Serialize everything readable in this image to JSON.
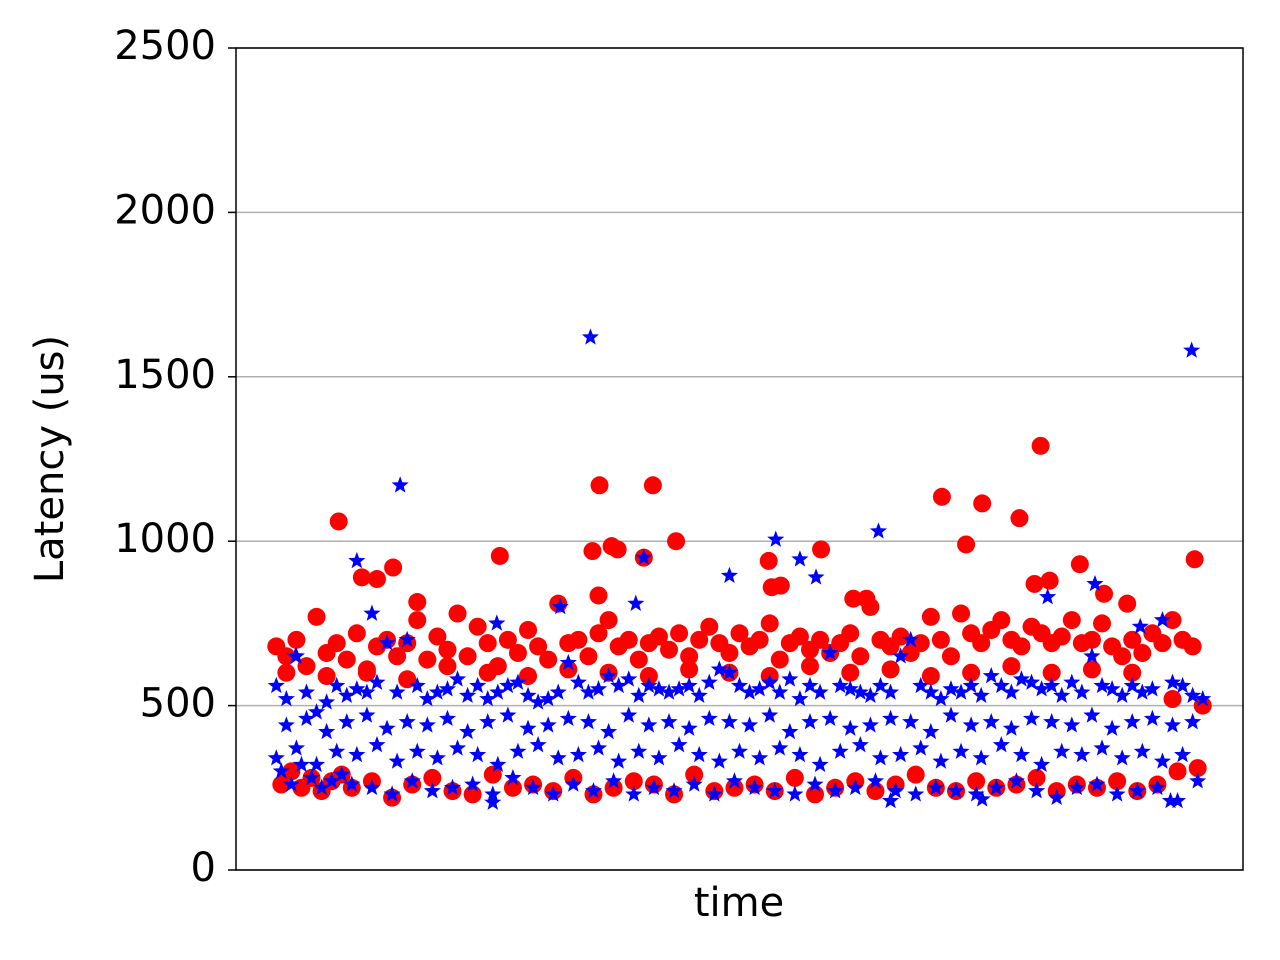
{
  "chart_data": {
    "type": "scatter",
    "xlabel": "time",
    "ylabel": "Latency (us)",
    "xlim": [
      0,
      100
    ],
    "ylim": [
      0,
      2500
    ],
    "yticks": [
      0,
      500,
      1000,
      1500,
      2000,
      2500
    ],
    "grid": "y",
    "series": [
      {
        "color": "#ff0000",
        "marker": "circle",
        "x": [
          4,
          5,
          6,
          7,
          8,
          9,
          10,
          11,
          12,
          13,
          14,
          15,
          16,
          17,
          18,
          19,
          20,
          21,
          22,
          23,
          24,
          25,
          26,
          27,
          28,
          29,
          30,
          31,
          32,
          33,
          34,
          35,
          36,
          37,
          38,
          39,
          40,
          41,
          42,
          43,
          44,
          45,
          46,
          47,
          48,
          49,
          50,
          51,
          52,
          53,
          54,
          55,
          56,
          57,
          58,
          59,
          60,
          61,
          62,
          63,
          64,
          65,
          66,
          67,
          68,
          69,
          70,
          71,
          72,
          73,
          74,
          75,
          76,
          77,
          78,
          79,
          80,
          81,
          82,
          83,
          84,
          85,
          86,
          87,
          88,
          89,
          90,
          91,
          92,
          93,
          94,
          95,
          96,
          4.5,
          5.5,
          6.5,
          7.5,
          8.5,
          9.5,
          10.5,
          11.5,
          13.5,
          15.5,
          17.5,
          19.5,
          21.5,
          23.5,
          25.5,
          27.5,
          29.5,
          31.5,
          33.5,
          35.5,
          37.5,
          39.5,
          41.5,
          43.5,
          45.5,
          47.5,
          49.5,
          51.5,
          53.5,
          55.5,
          57.5,
          59.5,
          61.5,
          63.5,
          65.5,
          67.5,
          69.5,
          71.5,
          73.5,
          75.5,
          77.5,
          79.5,
          81.5,
          83.5,
          85.5,
          87.5,
          89.5,
          91.5,
          93.5,
          95.5,
          5,
          9,
          13,
          17,
          21,
          25,
          29,
          33,
          37,
          41,
          45,
          49,
          53,
          57,
          61,
          65,
          69,
          73,
          77,
          81,
          85,
          89,
          93,
          10.2,
          12.5,
          14,
          15.6,
          18,
          26.2,
          36.1,
          35.4,
          37.3,
          37.9,
          36,
          40.5,
          41.4,
          43.7,
          52.9,
          53.2,
          54.1,
          58.1,
          61.3,
          62.6,
          70.1,
          72.5,
          74.1,
          77.8,
          79.9,
          80.8,
          83.8,
          86.2,
          88.5,
          95.2,
          79.3
        ],
        "values": [
          680,
          650,
          700,
          620,
          770,
          660,
          690,
          640,
          720,
          600,
          680,
          700,
          650,
          690,
          760,
          640,
          710,
          670,
          780,
          650,
          740,
          690,
          620,
          700,
          660,
          730,
          680,
          640,
          810,
          690,
          700,
          650,
          720,
          760,
          680,
          700,
          640,
          690,
          710,
          670,
          720,
          650,
          700,
          740,
          690,
          660,
          720,
          680,
          700,
          750,
          640,
          690,
          710,
          670,
          700,
          660,
          690,
          720,
          650,
          800,
          700,
          680,
          710,
          660,
          690,
          770,
          700,
          650,
          780,
          720,
          690,
          730,
          760,
          700,
          680,
          740,
          720,
          690,
          710,
          760,
          690,
          700,
          750,
          680,
          650,
          700,
          660,
          720,
          690,
          760,
          700,
          680,
          500,
          260,
          300,
          250,
          280,
          240,
          270,
          290,
          250,
          270,
          220,
          260,
          280,
          240,
          230,
          290,
          250,
          260,
          240,
          280,
          230,
          250,
          270,
          260,
          230,
          290,
          240,
          250,
          260,
          240,
          280,
          230,
          250,
          270,
          240,
          260,
          290,
          250,
          240,
          270,
          250,
          260,
          280,
          240,
          260,
          250,
          270,
          240,
          260,
          300,
          310,
          600,
          590,
          610,
          580,
          620,
          600,
          590,
          610,
          600,
          590,
          610,
          600,
          590,
          620,
          600,
          610,
          590,
          600,
          620,
          600,
          610,
          600,
          520,
          1060,
          890,
          885,
          920,
          815,
          955,
          1170,
          970,
          985,
          975,
          835,
          950,
          1170,
          1000,
          940,
          860,
          865,
          975,
          825,
          825,
          1135,
          990,
          1115,
          1070,
          1290,
          880,
          930,
          840,
          810,
          945,
          870
        ]
      },
      {
        "color": "#0000ff",
        "marker": "star",
        "x": [
          4,
          5,
          6,
          7,
          8,
          9,
          10,
          11,
          12,
          13,
          14,
          15,
          16,
          17,
          18,
          19,
          20,
          21,
          22,
          23,
          24,
          25,
          26,
          27,
          28,
          29,
          30,
          31,
          32,
          33,
          34,
          35,
          36,
          37,
          38,
          39,
          40,
          41,
          42,
          43,
          44,
          45,
          46,
          47,
          48,
          49,
          50,
          51,
          52,
          53,
          54,
          55,
          56,
          57,
          58,
          59,
          60,
          61,
          62,
          63,
          64,
          65,
          66,
          67,
          68,
          69,
          70,
          71,
          72,
          73,
          74,
          75,
          76,
          77,
          78,
          79,
          80,
          81,
          82,
          83,
          84,
          85,
          86,
          87,
          88,
          89,
          90,
          91,
          92,
          93,
          94,
          95,
          96,
          4.5,
          5.5,
          6.5,
          7.5,
          8.5,
          9.5,
          10.5,
          11.5,
          13.5,
          15.5,
          17.5,
          19.5,
          21.5,
          23.5,
          25.5,
          27.5,
          29.5,
          31.5,
          33.5,
          35.5,
          37.5,
          39.5,
          41.5,
          43.5,
          45.5,
          47.5,
          49.5,
          51.5,
          53.5,
          55.5,
          57.5,
          59.5,
          61.5,
          63.5,
          65.5,
          67.5,
          69.5,
          71.5,
          73.5,
          75.5,
          77.5,
          79.5,
          81.5,
          83.5,
          85.5,
          87.5,
          89.5,
          91.5,
          93.5,
          95.5,
          4,
          6,
          8,
          10,
          12,
          14,
          16,
          18,
          20,
          22,
          24,
          26,
          28,
          30,
          32,
          34,
          36,
          38,
          40,
          42,
          44,
          46,
          48,
          50,
          52,
          54,
          56,
          58,
          60,
          62,
          64,
          66,
          68,
          70,
          72,
          74,
          76,
          78,
          80,
          82,
          84,
          86,
          88,
          90,
          92,
          94,
          5,
          7,
          9,
          11,
          13,
          15,
          17,
          19,
          21,
          23,
          25,
          27,
          29,
          31,
          33,
          35,
          37,
          39,
          41,
          43,
          45,
          47,
          49,
          51,
          53,
          55,
          57,
          59,
          61,
          63,
          65,
          67,
          69,
          71,
          73,
          75,
          77,
          79,
          81,
          83,
          85,
          87,
          89,
          91,
          93,
          95,
          35.2,
          94.9,
          16.3,
          12,
          13.5,
          25.9,
          40.5,
          39.7,
          53.6,
          56,
          57.6,
          49,
          63.8,
          80.6,
          85.3,
          89.8,
          5.9,
          92.8,
          25.5,
          65,
          74.1,
          32.2
        ],
        "values": [
          560,
          520,
          650,
          540,
          480,
          510,
          560,
          530,
          550,
          540,
          570,
          690,
          540,
          700,
          560,
          520,
          540,
          550,
          580,
          530,
          560,
          520,
          540,
          560,
          570,
          530,
          510,
          520,
          540,
          630,
          570,
          540,
          550,
          590,
          560,
          580,
          530,
          560,
          550,
          540,
          550,
          560,
          530,
          570,
          610,
          600,
          560,
          540,
          550,
          570,
          540,
          580,
          520,
          560,
          540,
          660,
          560,
          550,
          540,
          530,
          560,
          540,
          650,
          700,
          560,
          540,
          520,
          550,
          540,
          560,
          530,
          590,
          560,
          540,
          580,
          570,
          550,
          560,
          530,
          570,
          540,
          650,
          560,
          550,
          530,
          560,
          540,
          550,
          760,
          570,
          560,
          530,
          520,
          300,
          260,
          320,
          280,
          250,
          270,
          290,
          260,
          250,
          230,
          270,
          240,
          250,
          260,
          230,
          280,
          250,
          230,
          260,
          240,
          270,
          230,
          250,
          240,
          260,
          230,
          270,
          250,
          240,
          230,
          260,
          240,
          250,
          270,
          240,
          230,
          250,
          240,
          230,
          250,
          270,
          240,
          220,
          250,
          260,
          230,
          240,
          250,
          210,
          270,
          340,
          370,
          320,
          360,
          350,
          380,
          330,
          360,
          340,
          370,
          350,
          320,
          360,
          380,
          340,
          350,
          370,
          330,
          360,
          340,
          380,
          350,
          330,
          360,
          340,
          370,
          350,
          320,
          360,
          380,
          340,
          350,
          370,
          330,
          360,
          340,
          380,
          350,
          320,
          360,
          350,
          370,
          340,
          360,
          330,
          350,
          440,
          460,
          420,
          450,
          470,
          430,
          450,
          440,
          460,
          420,
          450,
          470,
          430,
          440,
          460,
          450,
          420,
          470,
          440,
          450,
          430,
          460,
          450,
          440,
          470,
          420,
          450,
          460,
          430,
          440,
          460,
          450,
          420,
          470,
          440,
          450,
          430,
          460,
          450,
          440,
          470,
          430,
          450,
          460,
          440,
          450,
          1620,
          1580,
          1170,
          940,
          780,
          750,
          950,
          810,
          1005,
          945,
          890,
          895,
          1030,
          830,
          870,
          740,
          650,
          210,
          205,
          210,
          215,
          800
        ]
      }
    ]
  }
}
